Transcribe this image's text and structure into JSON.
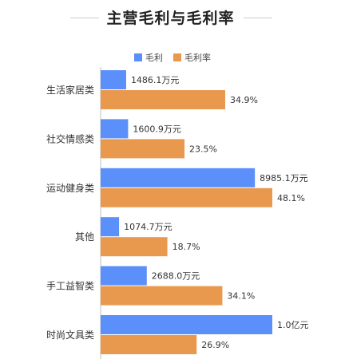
{
  "chart_data": {
    "type": "bar",
    "orientation": "horizontal",
    "title": "主营毛利与毛利率",
    "categories": [
      "生活家居类",
      "社交情感类",
      "运动健身类",
      "其他",
      "手工益智类",
      "时尚文具类"
    ],
    "series": [
      {
        "name": "毛利",
        "color": "#5b8ff9",
        "values": [
          1486.1,
          1600.9,
          8985.1,
          1074.7,
          2688.0,
          10000
        ],
        "labels": [
          "1486.1万元",
          "1600.9万元",
          "8985.1万元",
          "1074.7万元",
          "2688.0万元",
          "1.0亿元"
        ]
      },
      {
        "name": "毛利率",
        "color": "#e8994e",
        "values": [
          34.9,
          23.5,
          48.1,
          18.7,
          34.1,
          26.9
        ],
        "labels": [
          "34.9%",
          "23.5%",
          "48.1%",
          "18.7%",
          "34.1%",
          "26.9%"
        ]
      }
    ],
    "legend": "top-center",
    "grid": false
  }
}
